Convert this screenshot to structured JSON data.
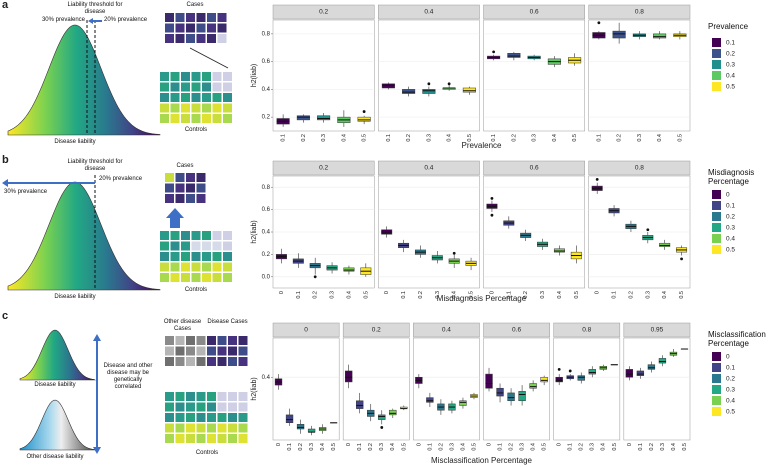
{
  "panel_labels": [
    "a",
    "b",
    "c"
  ],
  "diagrams": {
    "a": {
      "threshold": "Liability threshold for disease",
      "left": "30% prevalence",
      "right": "20% prevalence",
      "axis": "Disease liability",
      "cases": "Cases",
      "controls": "Controls"
    },
    "b": {
      "threshold": "Liability threshold for disease",
      "left": "30% prevalence",
      "right": "20% prevalence",
      "axis": "Disease liability",
      "cases": "Cases",
      "controls": "Controls"
    },
    "c": {
      "axis1": "Disease liability",
      "axis2": "Other disease liability",
      "note": "Disease and other disease may be genetically correlated",
      "other_cases": "Other disease Cases",
      "disease_cases": "Disease Cases",
      "controls": "Controls"
    }
  },
  "chart_data": [
    {
      "type": "box",
      "ylabel": "h2(liab)",
      "xlabel": "Prevalence",
      "legend_title": "Prevalence",
      "categories": [
        "0.1",
        "0.2",
        "0.3",
        "0.4",
        "0.5"
      ],
      "colors": [
        "#440154",
        "#3b528b",
        "#21908d",
        "#5dc963",
        "#fde725"
      ],
      "ylim": [
        0.1,
        0.9
      ],
      "yticks": [
        0.2,
        0.4,
        0.6,
        0.8
      ],
      "facets": [
        {
          "title": "0.2",
          "values": [
            [
              0.13,
              0.15,
              0.17,
              0.19,
              0.22
            ],
            [
              0.16,
              0.18,
              0.2,
              0.21,
              0.22
            ],
            [
              0.16,
              0.18,
              0.19,
              0.21,
              0.23
            ],
            [
              0.13,
              0.16,
              0.18,
              0.2,
              0.25
            ],
            [
              0.15,
              0.17,
              0.18,
              0.2,
              0.21
            ]
          ],
          "outliers": [
            [],
            [],
            [],
            [],
            [
              0.24
            ]
          ]
        },
        {
          "title": "0.4",
          "values": [
            [
              0.4,
              0.41,
              0.43,
              0.44,
              0.45
            ],
            [
              0.35,
              0.37,
              0.38,
              0.4,
              0.42
            ],
            [
              0.35,
              0.37,
              0.39,
              0.4,
              0.42
            ],
            [
              0.39,
              0.4,
              0.41,
              0.41,
              0.43
            ],
            [
              0.36,
              0.38,
              0.39,
              0.41,
              0.42
            ]
          ],
          "outliers": [
            [],
            [],
            [
              0.44
            ],
            [
              0.44
            ],
            []
          ]
        },
        {
          "title": "0.6",
          "values": [
            [
              0.61,
              0.62,
              0.63,
              0.64,
              0.65
            ],
            [
              0.61,
              0.63,
              0.64,
              0.66,
              0.67
            ],
            [
              0.61,
              0.62,
              0.63,
              0.64,
              0.65
            ],
            [
              0.56,
              0.58,
              0.6,
              0.62,
              0.64
            ],
            [
              0.57,
              0.59,
              0.61,
              0.63,
              0.66
            ]
          ],
          "outliers": [
            [
              0.67
            ],
            [],
            [],
            [],
            []
          ]
        },
        {
          "title": "0.8",
          "values": [
            [
              0.76,
              0.77,
              0.79,
              0.81,
              0.82
            ],
            [
              0.73,
              0.77,
              0.8,
              0.82,
              0.88
            ],
            [
              0.76,
              0.78,
              0.79,
              0.8,
              0.82
            ],
            [
              0.76,
              0.77,
              0.78,
              0.8,
              0.82
            ],
            [
              0.76,
              0.78,
              0.79,
              0.8,
              0.82
            ]
          ],
          "outliers": [
            [
              0.88
            ],
            [],
            [],
            [],
            []
          ]
        }
      ]
    },
    {
      "type": "box",
      "ylabel": "h2(liab)",
      "xlabel": "Misdiagnosis Percentage",
      "legend_title": "Misdiagnosis Percentage",
      "categories": [
        "0",
        "0.1",
        "0.2",
        "0.3",
        "0.4",
        "0.5"
      ],
      "colors": [
        "#440154",
        "#414487",
        "#2a788e",
        "#22a884",
        "#7ad151",
        "#fde725"
      ],
      "ylim": [
        -0.1,
        0.9
      ],
      "yticks": [
        {
          "value": 0,
          "label": "0.0"
        },
        0.2,
        0.4,
        0.6,
        0.8
      ],
      "facets": [
        {
          "title": "0.2",
          "values": [
            [
              0.12,
              0.16,
              0.18,
              0.2,
              0.25
            ],
            [
              0.08,
              0.12,
              0.14,
              0.16,
              0.21
            ],
            [
              0.02,
              0.08,
              0.1,
              0.12,
              0.17
            ],
            [
              0.03,
              0.06,
              0.08,
              0.1,
              0.13
            ],
            [
              0.02,
              0.05,
              0.06,
              0.08,
              0.1
            ],
            [
              0,
              0.02,
              0.05,
              0.08,
              0.12
            ]
          ],
          "outliers": [
            [],
            [],
            [
              0
            ],
            [],
            [],
            []
          ]
        },
        {
          "title": "0.4",
          "values": [
            [
              0.35,
              0.38,
              0.4,
              0.42,
              0.45
            ],
            [
              0.22,
              0.26,
              0.28,
              0.3,
              0.33
            ],
            [
              0.17,
              0.2,
              0.22,
              0.24,
              0.28
            ],
            [
              0.12,
              0.15,
              0.17,
              0.19,
              0.23
            ],
            [
              0.08,
              0.12,
              0.14,
              0.16,
              0.2
            ],
            [
              0.06,
              0.1,
              0.12,
              0.14,
              0.17
            ]
          ],
          "outliers": [
            [],
            [],
            [],
            [],
            [
              0.21
            ],
            []
          ]
        },
        {
          "title": "0.6",
          "values": [
            [
              0.58,
              0.61,
              0.63,
              0.65,
              0.68
            ],
            [
              0.43,
              0.46,
              0.48,
              0.5,
              0.54
            ],
            [
              0.32,
              0.35,
              0.37,
              0.39,
              0.42
            ],
            [
              0.24,
              0.27,
              0.29,
              0.31,
              0.34
            ],
            [
              0.19,
              0.22,
              0.23,
              0.25,
              0.28
            ],
            [
              0.12,
              0.16,
              0.19,
              0.22,
              0.28
            ]
          ],
          "outliers": [
            [
              0.55,
              0.7
            ],
            [],
            [],
            [],
            [],
            []
          ]
        },
        {
          "title": "0.8",
          "values": [
            [
              0.74,
              0.77,
              0.79,
              0.81,
              0.84
            ],
            [
              0.54,
              0.57,
              0.59,
              0.61,
              0.64
            ],
            [
              0.4,
              0.43,
              0.45,
              0.47,
              0.5
            ],
            [
              0.3,
              0.33,
              0.35,
              0.37,
              0.4
            ],
            [
              0.24,
              0.27,
              0.28,
              0.3,
              0.33
            ],
            [
              0.19,
              0.22,
              0.24,
              0.26,
              0.28
            ]
          ],
          "outliers": [
            [
              0.87
            ],
            [],
            [],
            [
              0.42
            ],
            [],
            [
              0.16
            ]
          ]
        }
      ]
    },
    {
      "type": "box",
      "ylabel": "h2(liab)",
      "xlabel": "Misclassification Percentage",
      "legend_title": "Misclassification Percentage",
      "categories": [
        "0",
        "0.1",
        "0.2",
        "0.3",
        "0.4",
        "0.5"
      ],
      "colors": [
        "#440154",
        "#414487",
        "#2a788e",
        "#22a884",
        "#7ad151",
        "#fde725"
      ],
      "ylim": [
        0,
        0.65
      ],
      "yticks": [
        0.4
      ],
      "facets": [
        {
          "title": "0",
          "values": [
            [
              0.32,
              0.35,
              0.37,
              0.39,
              0.42
            ],
            [
              0.09,
              0.11,
              0.13,
              0.16,
              0.2
            ],
            [
              0.04,
              0.07,
              0.08,
              0.1,
              0.13
            ],
            [
              0.03,
              0.05,
              0.05,
              0.07,
              0.09
            ],
            [
              0.04,
              0.06,
              0.07,
              0.08,
              0.1
            ],
            [
              0.11,
              0.11,
              0.11,
              0.11,
              0.11
            ]
          ]
        },
        {
          "title": "0.2",
          "values": [
            [
              0.33,
              0.37,
              0.4,
              0.44,
              0.48
            ],
            [
              0.17,
              0.2,
              0.22,
              0.25,
              0.3
            ],
            [
              0.12,
              0.15,
              0.17,
              0.19,
              0.23
            ],
            [
              0.1,
              0.13,
              0.15,
              0.16,
              0.19
            ],
            [
              0.14,
              0.16,
              0.17,
              0.19,
              0.2
            ],
            [
              0.19,
              0.2,
              0.2,
              0.21,
              0.22
            ]
          ],
          "outliers": [
            [],
            [],
            [],
            [
              0.08
            ],
            [],
            []
          ]
        },
        {
          "title": "0.4",
          "values": [
            [
              0.33,
              0.36,
              0.38,
              0.4,
              0.42
            ],
            [
              0.21,
              0.24,
              0.25,
              0.27,
              0.3
            ],
            [
              0.16,
              0.19,
              0.21,
              0.23,
              0.26
            ],
            [
              0.17,
              0.19,
              0.21,
              0.23,
              0.25
            ],
            [
              0.2,
              0.22,
              0.24,
              0.25,
              0.27
            ],
            [
              0.26,
              0.27,
              0.28,
              0.29,
              0.3
            ]
          ]
        },
        {
          "title": "0.6",
          "values": [
            [
              0.31,
              0.33,
              0.36,
              0.42,
              0.46
            ],
            [
              0.24,
              0.28,
              0.3,
              0.33,
              0.36
            ],
            [
              0.22,
              0.25,
              0.27,
              0.3,
              0.33
            ],
            [
              0.22,
              0.25,
              0.29,
              0.31,
              0.35
            ],
            [
              0.31,
              0.33,
              0.34,
              0.36,
              0.38
            ],
            [
              0.35,
              0.37,
              0.38,
              0.4,
              0.41
            ]
          ]
        },
        {
          "title": "0.8",
          "values": [
            [
              0.35,
              0.37,
              0.38,
              0.4,
              0.42
            ],
            [
              0.38,
              0.39,
              0.4,
              0.41,
              0.42
            ],
            [
              0.36,
              0.38,
              0.4,
              0.41,
              0.43
            ],
            [
              0.4,
              0.42,
              0.43,
              0.45,
              0.47
            ],
            [
              0.44,
              0.45,
              0.46,
              0.47,
              0.48
            ],
            [
              0.48,
              0.48,
              0.48,
              0.48,
              0.48
            ]
          ],
          "outliers": [
            [
              0.45
            ],
            [
              0.44
            ],
            [],
            [],
            [],
            []
          ]
        },
        {
          "title": "0.95",
          "values": [
            [
              0.38,
              0.4,
              0.42,
              0.45,
              0.47
            ],
            [
              0.39,
              0.41,
              0.42,
              0.44,
              0.46
            ],
            [
              0.43,
              0.45,
              0.46,
              0.48,
              0.5
            ],
            [
              0.47,
              0.49,
              0.5,
              0.52,
              0.54
            ],
            [
              0.53,
              0.54,
              0.55,
              0.56,
              0.58
            ],
            [
              0.58,
              0.58,
              0.58,
              0.58,
              0.58
            ]
          ]
        }
      ]
    }
  ]
}
